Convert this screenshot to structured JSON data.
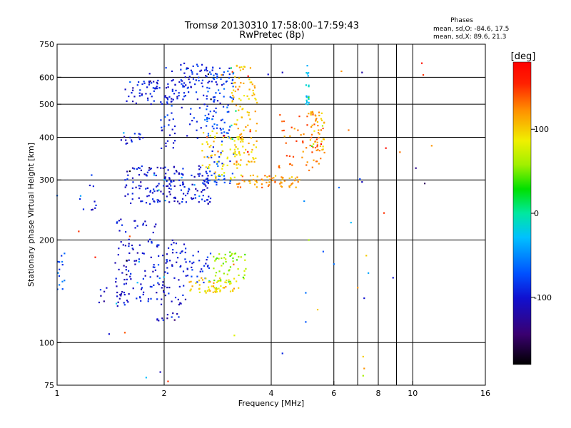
{
  "chart_data": {
    "type": "scatter",
    "title": "Tromsø 20130310 17:58:00–17:59:43",
    "subtitle": "RwPretec (8p)",
    "xlabel": "Frequency [MHz]",
    "ylabel": "Stationary phase Virtual Height [km]",
    "x_scale": "log",
    "y_scale": "log",
    "xlim": [
      1,
      16
    ],
    "ylim": [
      75,
      750
    ],
    "x_ticks": [
      1,
      2,
      4,
      6,
      8,
      10,
      16
    ],
    "x_tick_labels": [
      "1",
      "2",
      "4",
      "6",
      "8",
      "10",
      "16"
    ],
    "x_grid": [
      2,
      4,
      6,
      7,
      8,
      9,
      10
    ],
    "y_ticks": [
      75,
      100,
      200,
      300,
      400,
      500,
      600,
      750
    ],
    "y_tick_labels": [
      "75",
      "100",
      "200",
      "300",
      "400",
      "500",
      "600",
      "750"
    ],
    "y_grid": [
      100,
      200,
      300,
      400,
      500,
      600
    ],
    "grid": true,
    "phase_stats": {
      "heading": "Phases",
      "line_o": "mean, sd,O: -84.6, 17.5",
      "line_x": "mean, sd,X:  89.6, 21.3"
    },
    "colorbar": {
      "label": "[deg]",
      "range": [
        -180,
        180
      ],
      "ticks": [
        100,
        0,
        -100
      ],
      "tick_labels": [
        "100",
        "0",
        "-100"
      ],
      "colormap": "rainbow: black (-180) → purple → blue → cyan → green → yellow → orange → red (180)"
    },
    "clusters": [
      {
        "x_range": [
          1.55,
          2.3
        ],
        "y_range": [
          500,
          590
        ],
        "phase": -100,
        "count": 70
      },
      {
        "x_range": [
          2.2,
          2.75
        ],
        "y_range": [
          570,
          660
        ],
        "phase": -95,
        "count": 30
      },
      {
        "x_range": [
          2.0,
          3.1
        ],
        "y_range": [
          390,
          650
        ],
        "phase": -90,
        "count": 90
      },
      {
        "x_range": [
          2.6,
          3.15
        ],
        "y_range": [
          290,
          640
        ],
        "phase": -75,
        "count": 110
      },
      {
        "x_range": [
          3.1,
          3.65
        ],
        "y_range": [
          330,
          650
        ],
        "phase": 105,
        "count": 110
      },
      {
        "x_range": [
          2.55,
          3.3
        ],
        "y_range": [
          300,
          420
        ],
        "phase": 95,
        "count": 70
      },
      {
        "x_range": [
          4.2,
          5.6
        ],
        "y_range": [
          320,
          470
        ],
        "phase": 130,
        "count": 60
      },
      {
        "x_range": [
          5.15,
          5.65
        ],
        "y_range": [
          360,
          480
        ],
        "phase": 115,
        "count": 40
      },
      {
        "x_range": [
          5.0,
          5.1
        ],
        "y_range": [
          490,
          650
        ],
        "phase": -30,
        "count": 20
      },
      {
        "x_range": [
          1.1,
          1.3
        ],
        "y_range": [
          240,
          290
        ],
        "phase": -105,
        "count": 10
      },
      {
        "x_range": [
          1.5,
          1.75
        ],
        "y_range": [
          380,
          415
        ],
        "phase": -100,
        "count": 15
      },
      {
        "x_range": [
          1.95,
          2.15
        ],
        "y_range": [
          360,
          460
        ],
        "phase": -100,
        "count": 15
      },
      {
        "x_range": [
          1.55,
          2.7
        ],
        "y_range": [
          255,
          330
        ],
        "phase": -100,
        "count": 180
      },
      {
        "x_range": [
          1.0,
          1.05
        ],
        "y_range": [
          140,
          185
        ],
        "phase": -70,
        "count": 14
      },
      {
        "x_range": [
          1.3,
          1.55
        ],
        "y_range": [
          128,
          150
        ],
        "phase": -100,
        "count": 15
      },
      {
        "x_range": [
          1.45,
          2.3
        ],
        "y_range": [
          128,
          200
        ],
        "phase": -100,
        "count": 150
      },
      {
        "x_range": [
          1.9,
          2.2
        ],
        "y_range": [
          115,
          122
        ],
        "phase": -100,
        "count": 12
      },
      {
        "x_range": [
          2.3,
          2.7
        ],
        "y_range": [
          150,
          185
        ],
        "phase": -90,
        "count": 30
      },
      {
        "x_range": [
          2.35,
          3.25
        ],
        "y_range": [
          140,
          155
        ],
        "phase": 100,
        "count": 60
      },
      {
        "x_range": [
          2.75,
          3.4
        ],
        "y_range": [
          150,
          185
        ],
        "phase": 60,
        "count": 50
      },
      {
        "x_range": [
          1.45,
          1.95
        ],
        "y_range": [
          200,
          230
        ],
        "phase": -95,
        "count": 20
      },
      {
        "x_range": [
          3.2,
          4.8
        ],
        "y_range": [
          285,
          310
        ],
        "phase": 120,
        "count": 60
      }
    ],
    "isolated_points": [
      [
        1.82,
        615,
        -110
      ],
      [
        2.9,
        610,
        120
      ],
      [
        3.92,
        612,
        -100
      ],
      [
        4.3,
        620,
        -110
      ],
      [
        6.3,
        625,
        120
      ],
      [
        7.2,
        620,
        -120
      ],
      [
        10.7,
        610,
        150
      ],
      [
        10.6,
        660,
        170
      ],
      [
        6.6,
        420,
        130
      ],
      [
        7.1,
        302,
        -80
      ],
      [
        7.2,
        296,
        -110
      ],
      [
        8.4,
        372,
        170
      ],
      [
        9.2,
        362,
        130
      ],
      [
        10.2,
        325,
        -130
      ],
      [
        10.8,
        293,
        -150
      ],
      [
        11.3,
        378,
        120
      ],
      [
        8.3,
        240,
        150
      ],
      [
        6.2,
        285,
        -60
      ],
      [
        4.95,
        260,
        -50
      ],
      [
        6.7,
        225,
        -30
      ],
      [
        5.1,
        200,
        60
      ],
      [
        5.6,
        185,
        -70
      ],
      [
        7.4,
        180,
        100
      ],
      [
        6.0,
        170,
        -60
      ],
      [
        7.5,
        160,
        -40
      ],
      [
        8.8,
        155,
        -100
      ],
      [
        5.0,
        140,
        -60
      ],
      [
        7.0,
        145,
        120
      ],
      [
        7.3,
        135,
        -100
      ],
      [
        5.0,
        115,
        -70
      ],
      [
        5.4,
        125,
        100
      ],
      [
        3.15,
        105,
        80
      ],
      [
        4.3,
        93,
        -90
      ],
      [
        7.25,
        91,
        100
      ],
      [
        7.3,
        84,
        120
      ],
      [
        7.25,
        80,
        60
      ],
      [
        1.78,
        79,
        -30
      ],
      [
        1.95,
        82,
        -110
      ],
      [
        2.05,
        77,
        150
      ],
      [
        2.1,
        74,
        -120
      ],
      [
        1.0,
        270,
        -60
      ],
      [
        1.15,
        212,
        150
      ],
      [
        1.25,
        310,
        -80
      ],
      [
        1.28,
        178,
        160
      ],
      [
        1.4,
        106,
        -100
      ],
      [
        1.55,
        107,
        140
      ],
      [
        1.6,
        205,
        140
      ]
    ]
  }
}
